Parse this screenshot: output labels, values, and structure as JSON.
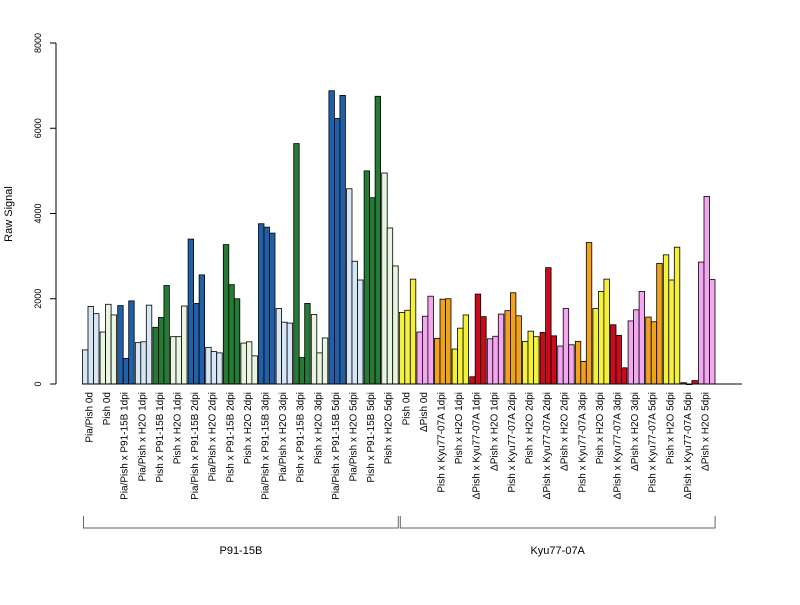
{
  "chart_data": {
    "type": "bar",
    "ylabel": "Raw Signal",
    "ylim": [
      0,
      8000
    ],
    "yticks": [
      0,
      2000,
      4000,
      6000,
      8000
    ],
    "grid": false,
    "legend": "none",
    "categories": [
      "Pia/Pish 0d",
      "Pish 0d",
      "Pia/Pish x P91-15B 1dpi",
      "Pia/Pish x H2O 1dpi",
      "Pish x P91-15B 1dpi",
      "Pish x H2O 1dpi",
      "Pia/Pish x P91-15B 2dpi",
      "Pia/Pish x H2O 2dpi",
      "Pish x P91-15B 2dpi",
      "Pish x H2O 2dpi",
      "Pia/Pish x P91-15B 3dpi",
      "Pia/Pish x H2O 3dpi",
      "Pish x P91-15B 3dpi",
      "Pish x H2O 3dpi",
      "Pia/Pish x P91-15B 5dpi",
      "Pia/Pish x H2O 5dpi",
      "Pish x P91-15B 5dpi",
      "Pish x H2O 5dpi",
      "Pish 0d",
      "ΔPish 0d",
      "Pish x Kyu77-07A 1dpi",
      "Pish x H2O 1dpi",
      "ΔPish x Kyu77-07A 1dpi",
      "ΔPish x H2O 1dpi",
      "Pish x Kyu77-07A 2dpi",
      "Pish x H2O 2dpi",
      "ΔPish x Kyu77-07A 2dpi",
      "ΔPish x H2O 2dpi",
      "Pish x Kyu77-07A 3dpi",
      "Pish x H2O 3dpi",
      "ΔPish x Kyu77-07A 3dpi",
      "ΔPish x H2O 3dpi",
      "Pish x Kyu77-07A 5dpi",
      "Pish x H2O 5dpi",
      "ΔPish x Kyu77-07A 5dpi",
      "ΔPish x H2O 5dpi"
    ],
    "colors": {
      "light_blue": "#d6e6f5",
      "light_green": "#e8f5e1",
      "dark_blue": "#2160a8",
      "dark_green": "#267a35",
      "yellow": "#f5f03a",
      "pink": "#f5a6f0",
      "orange": "#f0a11f",
      "red": "#cc0a1e"
    },
    "groups": [
      {
        "color": "light_blue",
        "values": [
          800,
          1820,
          1650
        ]
      },
      {
        "color": "light_green",
        "values": [
          1220,
          1870,
          1620
        ]
      },
      {
        "color": "dark_blue",
        "values": [
          1840,
          600,
          1950
        ]
      },
      {
        "color": "light_blue",
        "values": [
          970,
          990,
          1850
        ]
      },
      {
        "color": "dark_green",
        "values": [
          1330,
          1560,
          2310
        ]
      },
      {
        "color": "light_green",
        "values": [
          1110,
          1110,
          1830
        ]
      },
      {
        "color": "dark_blue",
        "values": [
          3400,
          1890,
          2560
        ]
      },
      {
        "color": "light_blue",
        "values": [
          860,
          760,
          730
        ]
      },
      {
        "color": "dark_green",
        "values": [
          3270,
          2330,
          2000
        ]
      },
      {
        "color": "light_green",
        "values": [
          960,
          990,
          660
        ]
      },
      {
        "color": "dark_blue",
        "values": [
          3760,
          3680,
          3540
        ]
      },
      {
        "color": "light_blue",
        "values": [
          1770,
          1450,
          1430
        ]
      },
      {
        "color": "dark_green",
        "values": [
          5640,
          620,
          1890
        ]
      },
      {
        "color": "light_green",
        "values": [
          1630,
          730,
          1080
        ]
      },
      {
        "color": "dark_blue",
        "values": [
          6880,
          6230,
          6770
        ]
      },
      {
        "color": "light_blue",
        "values": [
          4580,
          2880,
          2440
        ]
      },
      {
        "color": "dark_green",
        "values": [
          5000,
          4370,
          6750
        ]
      },
      {
        "color": "light_green",
        "values": [
          4950,
          3660,
          2770
        ]
      },
      {
        "color": "yellow",
        "values": [
          1680,
          1730,
          2460
        ]
      },
      {
        "color": "pink",
        "values": [
          1220,
          1590,
          2060
        ]
      },
      {
        "color": "orange",
        "values": [
          1070,
          1990,
          2000
        ]
      },
      {
        "color": "yellow",
        "values": [
          820,
          1310,
          1620
        ]
      },
      {
        "color": "red",
        "values": [
          170,
          2110,
          1580
        ]
      },
      {
        "color": "pink",
        "values": [
          1060,
          1120,
          1640
        ]
      },
      {
        "color": "orange",
        "values": [
          1720,
          2140,
          1600
        ]
      },
      {
        "color": "yellow",
        "values": [
          1000,
          1240,
          1110
        ]
      },
      {
        "color": "red",
        "values": [
          1210,
          2730,
          1130
        ]
      },
      {
        "color": "pink",
        "values": [
          890,
          1770,
          920
        ]
      },
      {
        "color": "orange",
        "values": [
          1000,
          530,
          3320
        ]
      },
      {
        "color": "yellow",
        "values": [
          1770,
          2170,
          2460
        ]
      },
      {
        "color": "red",
        "values": [
          1390,
          1140,
          380
        ]
      },
      {
        "color": "pink",
        "values": [
          1480,
          1740,
          2170
        ]
      },
      {
        "color": "orange",
        "values": [
          1570,
          1460,
          2830
        ]
      },
      {
        "color": "yellow",
        "values": [
          3030,
          2440,
          3210
        ]
      },
      {
        "color": "red",
        "values": [
          30,
          0,
          80
        ]
      },
      {
        "color": "pink",
        "values": [
          2860,
          4400,
          2450
        ]
      }
    ],
    "sections": [
      {
        "label": "P91-15B",
        "from": 0,
        "to": 17
      },
      {
        "label": "Kyu77-07A",
        "from": 18,
        "to": 35
      }
    ]
  }
}
